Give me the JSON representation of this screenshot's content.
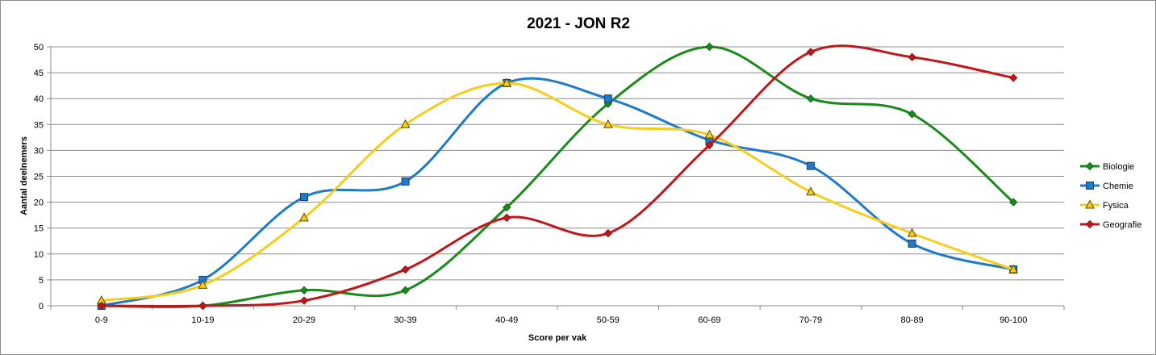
{
  "chart_data": {
    "type": "line",
    "title": "2021 - JON R2",
    "xlabel": "Score per vak",
    "ylabel": "Aantal deelnemers",
    "categories": [
      "0-9",
      "10-19",
      "20-29",
      "30-39",
      "40-49",
      "50-59",
      "60-69",
      "70-79",
      "80-89",
      "90-100"
    ],
    "ylim": [
      0,
      50
    ],
    "yticks": [
      0,
      5,
      10,
      15,
      20,
      25,
      30,
      35,
      40,
      45,
      50
    ],
    "grid": true,
    "smoothed": true,
    "legend_position": "right",
    "series": [
      {
        "name": "Biologie",
        "color": "#1a8a1a",
        "marker": "diamond",
        "values": [
          0,
          0,
          3,
          3,
          19,
          39,
          50,
          40,
          37,
          20
        ]
      },
      {
        "name": "Chemie",
        "color": "#1f7bc8",
        "marker": "square",
        "values": [
          0,
          5,
          21,
          24,
          43,
          40,
          32,
          27,
          12,
          7
        ]
      },
      {
        "name": "Fysica",
        "color": "#f7cd1a",
        "marker": "triangle",
        "values": [
          1,
          4,
          17,
          35,
          43,
          35,
          33,
          22,
          14,
          7
        ]
      },
      {
        "name": "Geografie",
        "color": "#c0171b",
        "marker": "diamond",
        "values": [
          0,
          0,
          1,
          7,
          17,
          14,
          31,
          49,
          48,
          44
        ]
      }
    ]
  }
}
